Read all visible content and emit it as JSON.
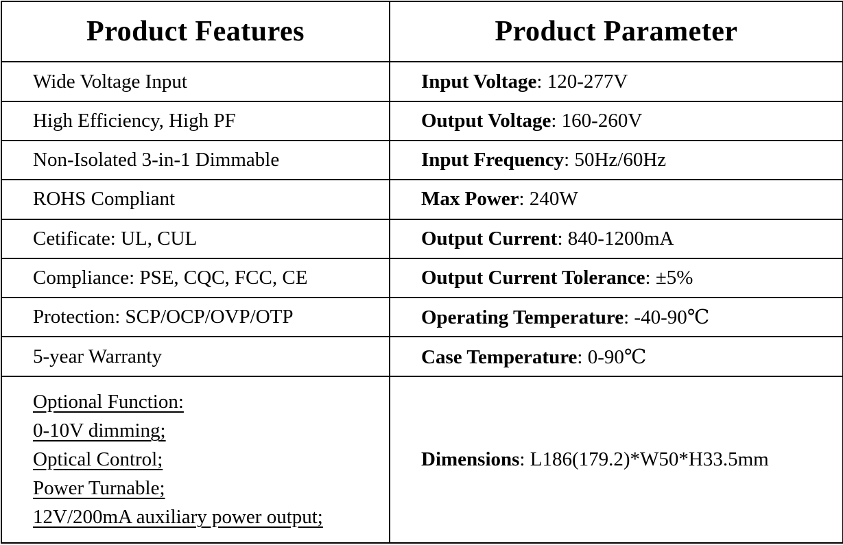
{
  "separator": ": ",
  "table": {
    "headers": {
      "features": "Product Features",
      "parameters": "Product Parameter"
    },
    "rows": [
      {
        "feature": "Wide Voltage Input",
        "param_label": "Input Voltage",
        "param_value": "120-277V"
      },
      {
        "feature": "High Efficiency, High PF",
        "param_label": "Output Voltage",
        "param_value": "160-260V"
      },
      {
        "feature": "Non-Isolated 3-in-1 Dimmable",
        "param_label": "Input Frequency",
        "param_value": "50Hz/60Hz"
      },
      {
        "feature": "ROHS Compliant",
        "param_label": "Max Power",
        "param_value": "240W"
      },
      {
        "feature": "Cetificate: UL, CUL",
        "param_label": "Output Current",
        "param_value": "840-1200mA"
      },
      {
        "feature": "Compliance: PSE, CQC, FCC, CE",
        "param_label": "Output Current Tolerance",
        "param_value": "±5%"
      },
      {
        "feature": "Protection: SCP/OCP/OVP/OTP",
        "param_label": "Operating Temperature",
        "param_value": "-40-90℃"
      },
      {
        "feature": "5-year Warranty",
        "param_label": "Case Temperature",
        "param_value": "0-90℃"
      }
    ],
    "optional_row": {
      "feature_lines": [
        "Optional Function:",
        "0-10V dimming;",
        "Optical Control;",
        "Power Turnable;",
        "12V/200mA auxiliary power output;"
      ],
      "param_label": "Dimensions",
      "param_value": "L186(179.2)*W50*H33.5mm"
    }
  }
}
